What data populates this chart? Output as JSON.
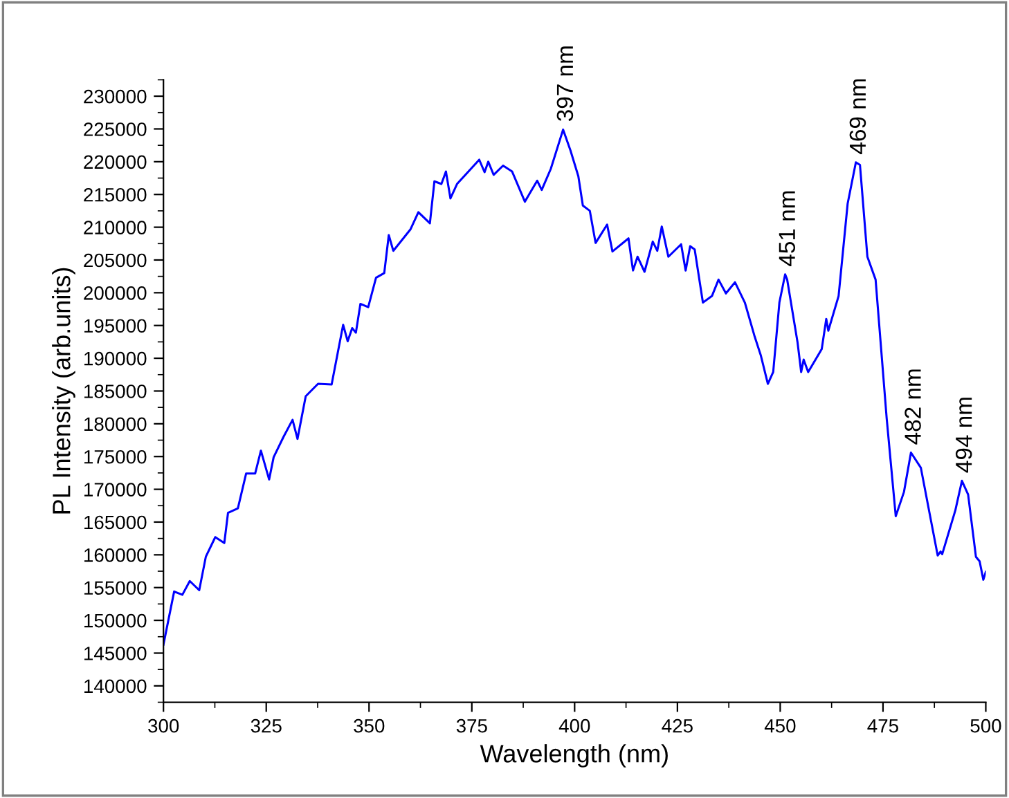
{
  "chart_data": {
    "type": "line",
    "xlabel": "Wavelength (nm)",
    "ylabel": "PL Intensity (arb.units)",
    "xlim": [
      300,
      500
    ],
    "xticks": [
      300,
      325,
      350,
      375,
      400,
      425,
      450,
      475,
      500
    ],
    "ylim": [
      137500,
      232500
    ],
    "yticks": [
      140000,
      145000,
      150000,
      155000,
      160000,
      165000,
      170000,
      175000,
      180000,
      185000,
      190000,
      195000,
      200000,
      205000,
      210000,
      215000,
      220000,
      225000,
      230000
    ],
    "grid": false,
    "legend": false,
    "marker": "none",
    "line_style": "solid",
    "series": [
      {
        "color": "#0000ff",
        "x": [
          300,
          302.6,
          304.6,
          306.4,
          308.7,
          310.3,
          312.6,
          314.8,
          315.7,
          318.1,
          320.1,
          322.3,
          323.7,
          325.7,
          326.8,
          329.2,
          331.4,
          332.6,
          334.6,
          337.6,
          340.9,
          343.7,
          344.8,
          345.9,
          346.8,
          347.9,
          349.8,
          351.7,
          353.7,
          354.8,
          355.9,
          360.1,
          362,
          364.8,
          365.9,
          367.6,
          368.7,
          369.8,
          371.4,
          376.8,
          378.1,
          379,
          380.3,
          382.6,
          384.8,
          387.9,
          390.9,
          392,
          394.2,
          397.2,
          399,
          400.9,
          402,
          403.7,
          405.1,
          407.9,
          409.2,
          413.1,
          414.2,
          415.3,
          417,
          419,
          420.1,
          421.2,
          422.8,
          425.9,
          427,
          428.1,
          429.2,
          431.2,
          433.4,
          435,
          436.8,
          439,
          441.4,
          443.7,
          445.3,
          447,
          448.3,
          449.8,
          451.2,
          451.7,
          454.2,
          455.1,
          455.7,
          456.8,
          460.1,
          461.2,
          461.7,
          464.2,
          466.4,
          468.4,
          469.4,
          471.2,
          473.2,
          475.9,
          478.1,
          480.1,
          481.8,
          484.2,
          486.4,
          488.3,
          489,
          489.4,
          492.6,
          494.2,
          495.7,
          497.6,
          498.5,
          499.4,
          500
        ],
        "values": [
          146300,
          154400,
          153900,
          156000,
          154600,
          159700,
          162700,
          161800,
          166400,
          167100,
          172400,
          172400,
          175900,
          171500,
          174900,
          178000,
          180600,
          177700,
          184200,
          186100,
          186000,
          195100,
          192600,
          194600,
          193900,
          198300,
          197800,
          202300,
          203000,
          208800,
          206400,
          209700,
          212300,
          210600,
          217000,
          216600,
          218500,
          214400,
          216600,
          220300,
          218400,
          220000,
          218000,
          219400,
          218500,
          213900,
          217100,
          215700,
          218900,
          224900,
          221700,
          217800,
          213300,
          212500,
          207600,
          210400,
          206300,
          208300,
          203400,
          205500,
          203200,
          207800,
          206400,
          210100,
          205500,
          207400,
          203400,
          207100,
          206600,
          198500,
          199500,
          202000,
          199900,
          201600,
          198500,
          193500,
          190400,
          186100,
          187900,
          198500,
          202800,
          202000,
          192500,
          187900,
          189800,
          187900,
          191400,
          196000,
          194200,
          199500,
          213600,
          219900,
          219500,
          205500,
          202000,
          180800,
          165900,
          169600,
          175600,
          173300,
          166100,
          159900,
          160500,
          160100,
          166800,
          171300,
          169200,
          159700,
          159000,
          156200,
          157400
        ]
      }
    ],
    "annotations": [
      {
        "text": "397 nm",
        "x": 397.2,
        "y": 224900
      },
      {
        "text": "451 nm",
        "x": 451.2,
        "y": 202800
      },
      {
        "text": "469 nm",
        "x": 468.4,
        "y": 219900
      },
      {
        "text": "482 nm",
        "x": 481.8,
        "y": 175600
      },
      {
        "text": "494 nm",
        "x": 494.2,
        "y": 171300
      }
    ]
  }
}
